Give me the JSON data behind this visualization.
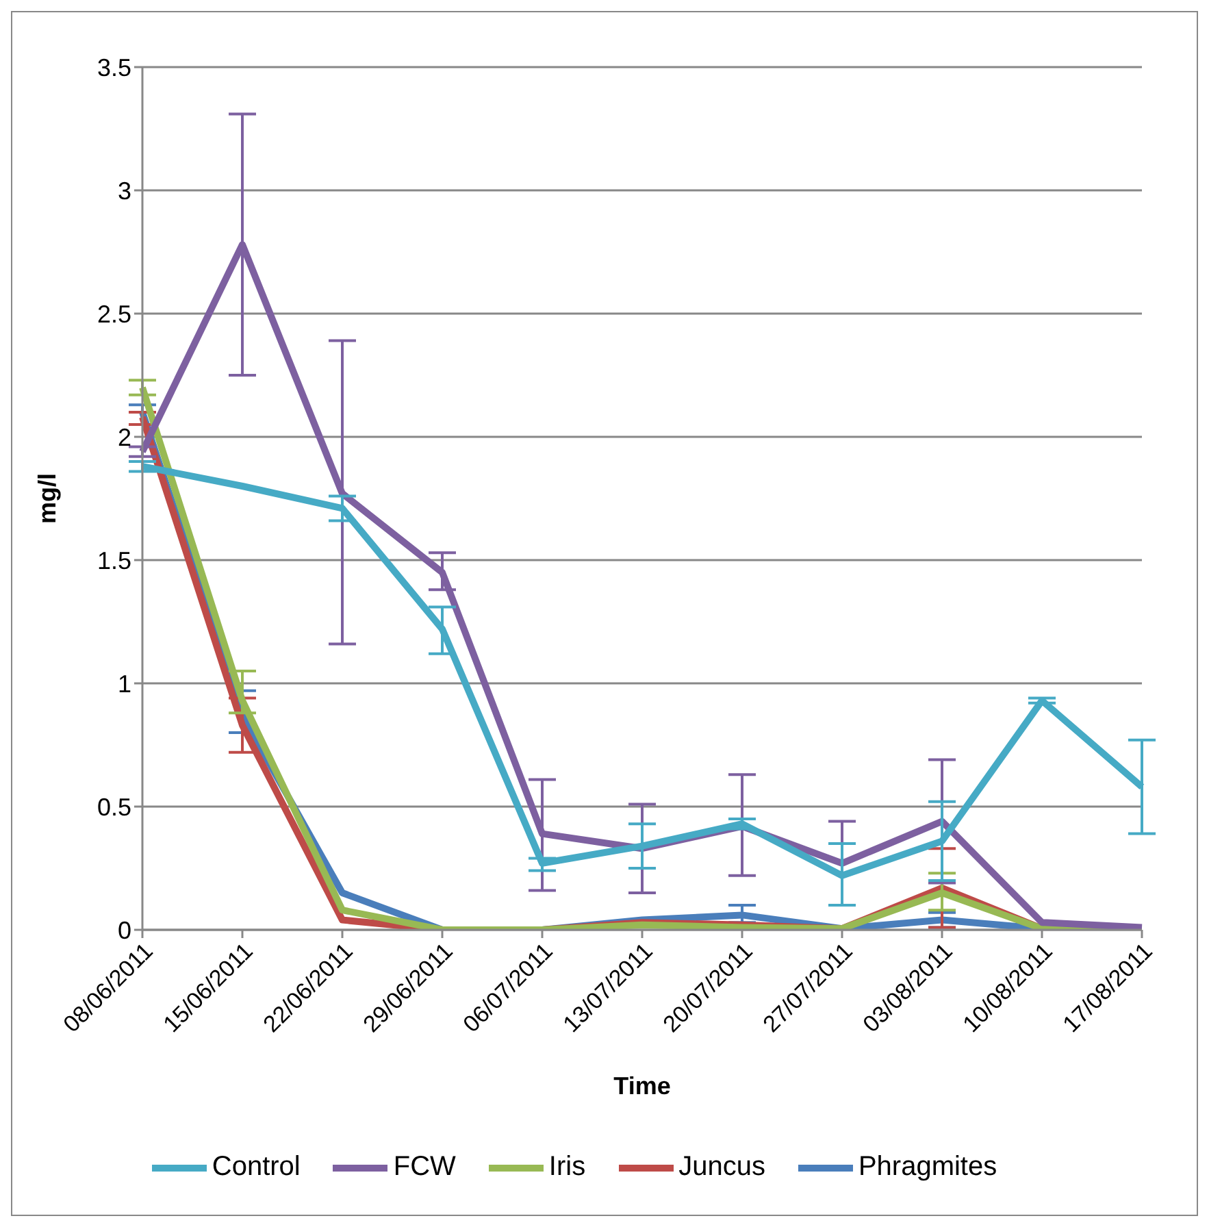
{
  "chart_data": {
    "type": "line",
    "xlabel": "Time",
    "ylabel": "mg/l",
    "categories": [
      "08/06/2011",
      "15/06/2011",
      "22/06/2011",
      "29/06/2011",
      "06/07/2011",
      "13/07/2011",
      "20/07/2011",
      "27/07/2011",
      "03/08/2011",
      "10/08/2011",
      "17/08/2011"
    ],
    "ylim": [
      0,
      3.5
    ],
    "yticks": [
      0,
      0.5,
      1,
      1.5,
      2,
      2.5,
      3,
      3.5
    ],
    "grid": "y",
    "legend": "bottom",
    "marker": "none",
    "line_style": "solid",
    "series": [
      {
        "name": "Phragmites",
        "color": "#4a7ebb",
        "values": [
          2.1,
          0.87,
          0.15,
          0,
          0,
          0.04,
          0.06,
          0.005,
          0.04,
          0.005,
          0.005
        ],
        "errors": [
          [
            2.05,
            2.13
          ],
          [
            0.8,
            0.97
          ],
          null,
          null,
          null,
          null,
          [
            0.03,
            0.1
          ],
          null,
          [
            0.01,
            0.07
          ],
          null,
          null
        ]
      },
      {
        "name": "Juncus",
        "color": "#be4b48",
        "values": [
          2.08,
          0.83,
          0.04,
          0,
          0,
          0.03,
          0.02,
          0.005,
          0.17,
          0.005,
          0.005
        ],
        "errors": [
          [
            2.05,
            2.1
          ],
          [
            0.72,
            0.94
          ],
          null,
          null,
          null,
          null,
          null,
          null,
          [
            0.01,
            0.33
          ],
          null,
          null
        ]
      },
      {
        "name": "Iris",
        "color": "#98b954",
        "values": [
          2.2,
          0.93,
          0.08,
          0,
          0,
          0.02,
          0.01,
          0.005,
          0.15,
          0.005,
          0.005
        ],
        "errors": [
          [
            2.17,
            2.23
          ],
          [
            0.88,
            1.05
          ],
          null,
          null,
          null,
          null,
          null,
          null,
          [
            0.08,
            0.23
          ],
          null,
          null
        ]
      },
      {
        "name": "FCW",
        "color": "#7d60a0",
        "values": [
          1.94,
          2.78,
          1.77,
          1.45,
          0.39,
          0.33,
          0.42,
          0.27,
          0.44,
          0.03,
          0.01
        ],
        "errors": [
          [
            1.92,
            1.96
          ],
          [
            2.25,
            3.31
          ],
          [
            1.16,
            2.39
          ],
          [
            1.38,
            1.53
          ],
          [
            0.16,
            0.61
          ],
          [
            0.15,
            0.51
          ],
          [
            0.22,
            0.63
          ],
          [
            0.1,
            0.44
          ],
          [
            0.19,
            0.69
          ],
          null,
          null
        ]
      },
      {
        "name": "Control",
        "color": "#46aac5",
        "values": [
          1.88,
          1.8,
          1.71,
          1.22,
          0.27,
          0.34,
          0.43,
          0.22,
          0.36,
          0.93,
          0.58
        ],
        "errors": [
          [
            1.86,
            1.9
          ],
          null,
          [
            1.66,
            1.76
          ],
          [
            1.12,
            1.31
          ],
          [
            0.24,
            0.29
          ],
          [
            0.25,
            0.43
          ],
          [
            0.41,
            0.45
          ],
          [
            0.1,
            0.35
          ],
          [
            0.2,
            0.52
          ],
          [
            0.92,
            0.94
          ],
          [
            0.39,
            0.77
          ]
        ]
      }
    ]
  }
}
